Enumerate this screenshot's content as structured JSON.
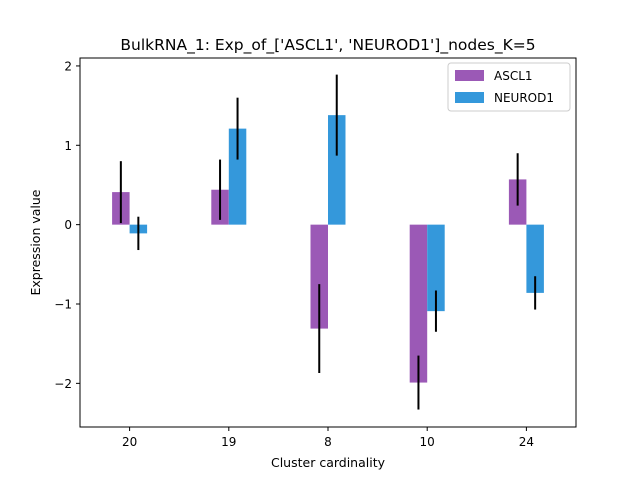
{
  "chart_data": {
    "type": "bar",
    "title": "BulkRNA_1: Exp_of_['ASCL1', 'NEUROD1']_nodes_K=5",
    "xlabel": "Cluster cardinality",
    "ylabel": "Expression value",
    "categories": [
      "20",
      "19",
      "8",
      "10",
      "24"
    ],
    "ylim": [
      -2.55,
      2.1
    ],
    "yticks": [
      2,
      1,
      0,
      -1,
      -2
    ],
    "ytick_labels": [
      "2",
      "1",
      "0",
      "−1",
      "−2"
    ],
    "series": [
      {
        "name": "ASCL1",
        "color": "#9b59b6",
        "values": [
          0.41,
          0.44,
          -1.31,
          -1.99,
          0.57
        ],
        "error": [
          0.39,
          0.38,
          0.56,
          0.34,
          0.33
        ]
      },
      {
        "name": "NEUROD1",
        "color": "#3498db",
        "values": [
          -0.11,
          1.21,
          1.38,
          -1.09,
          -0.86
        ],
        "error": [
          0.21,
          0.39,
          0.51,
          0.26,
          0.21
        ]
      }
    ],
    "legend_position": "top-right",
    "grid": false
  }
}
